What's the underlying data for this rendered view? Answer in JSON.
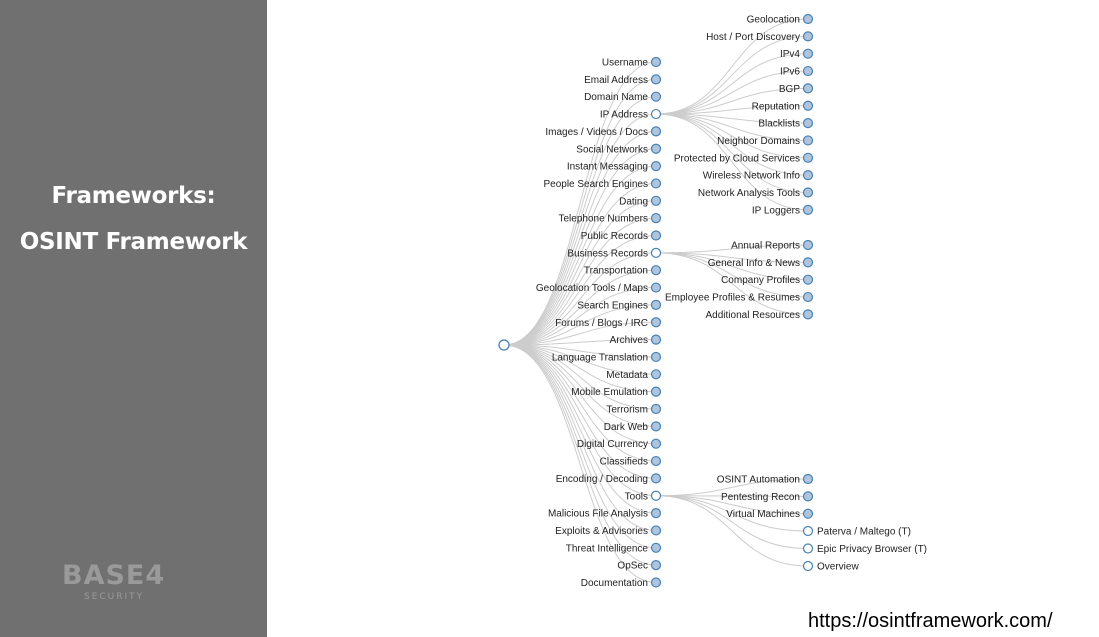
{
  "sidebar": {
    "title_line1": "Frameworks:",
    "title_line2": "OSINT Framework",
    "logo_text": "BASE4",
    "logo_subtext": "SECURITY"
  },
  "url": "https://osintframework.com/",
  "colors": {
    "sidebar_bg": "#707070",
    "node_fill": "#b0c4de",
    "node_stroke": "#4682b4",
    "link": "#cccccc"
  },
  "tree": {
    "root": "",
    "children": [
      {
        "name": "Username"
      },
      {
        "name": "Email Address"
      },
      {
        "name": "Domain Name"
      },
      {
        "name": "IP Address",
        "expanded": true,
        "children": [
          {
            "name": "Geolocation"
          },
          {
            "name": "Host / Port Discovery"
          },
          {
            "name": "IPv4"
          },
          {
            "name": "IPv6"
          },
          {
            "name": "BGP"
          },
          {
            "name": "Reputation"
          },
          {
            "name": "Blacklists"
          },
          {
            "name": "Neighbor Domains"
          },
          {
            "name": "Protected by Cloud Services"
          },
          {
            "name": "Wireless Network Info"
          },
          {
            "name": "Network Analysis Tools"
          },
          {
            "name": "IP Loggers"
          }
        ]
      },
      {
        "name": "Images / Videos / Docs"
      },
      {
        "name": "Social Networks"
      },
      {
        "name": "Instant Messaging"
      },
      {
        "name": "People Search Engines"
      },
      {
        "name": "Dating"
      },
      {
        "name": "Telephone Numbers"
      },
      {
        "name": "Public Records"
      },
      {
        "name": "Business Records",
        "expanded": true,
        "children": [
          {
            "name": "Annual Reports"
          },
          {
            "name": "General Info & News"
          },
          {
            "name": "Company Profiles"
          },
          {
            "name": "Employee Profiles & Resumes"
          },
          {
            "name": "Additional Resources"
          }
        ]
      },
      {
        "name": "Transportation"
      },
      {
        "name": "Geolocation Tools / Maps"
      },
      {
        "name": "Search Engines"
      },
      {
        "name": "Forums / Blogs / IRC"
      },
      {
        "name": "Archives"
      },
      {
        "name": "Language Translation"
      },
      {
        "name": "Metadata"
      },
      {
        "name": "Mobile Emulation"
      },
      {
        "name": "Terrorism"
      },
      {
        "name": "Dark Web"
      },
      {
        "name": "Digital Currency"
      },
      {
        "name": "Classifieds"
      },
      {
        "name": "Encoding / Decoding"
      },
      {
        "name": "Tools",
        "expanded": true,
        "children": [
          {
            "name": "OSINT Automation"
          },
          {
            "name": "Pentesting Recon"
          },
          {
            "name": "Virtual Machines",
            "expanded": true,
            "children": [
              {
                "name": "Paterva / Maltego (T)",
                "leaf": true
              },
              {
                "name": "Epic Privacy Browser (T)",
                "leaf": true
              },
              {
                "name": "Overview",
                "leaf": true
              }
            ]
          }
        ]
      },
      {
        "name": "Malicious File Analysis"
      },
      {
        "name": "Exploits & Advisories"
      },
      {
        "name": "Threat Intelligence"
      },
      {
        "name": "OpSec"
      },
      {
        "name": "Documentation"
      }
    ]
  }
}
